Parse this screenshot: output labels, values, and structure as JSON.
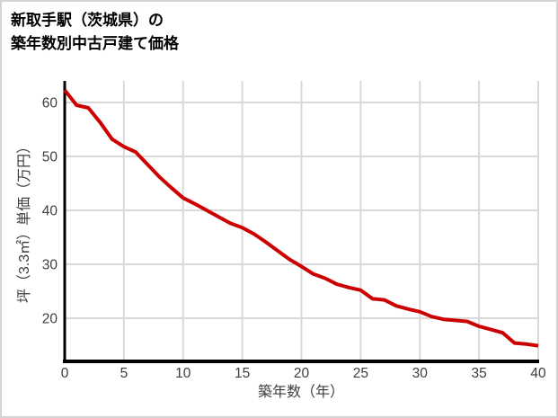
{
  "title": {
    "line1": "新取手駅（茨城県）の",
    "line2": "築年数別中古戸建て価格"
  },
  "chart_data": {
    "type": "line",
    "title": "新取手駅（茨城県）の築年数別中古戸建て価格",
    "xlabel": "築年数（年）",
    "ylabel": "坪（3.3㎡）単価（万円）",
    "x": [
      0,
      1,
      2,
      3,
      4,
      5,
      6,
      7,
      8,
      9,
      10,
      11,
      12,
      13,
      14,
      15,
      16,
      17,
      18,
      19,
      20,
      21,
      22,
      23,
      24,
      25,
      26,
      27,
      28,
      29,
      30,
      31,
      32,
      33,
      34,
      35,
      36,
      37,
      38,
      39,
      40
    ],
    "values": [
      62.3,
      59.5,
      59.0,
      56.3,
      53.2,
      51.8,
      50.8,
      48.5,
      46.2,
      44.2,
      42.3,
      41.2,
      40.0,
      38.8,
      37.6,
      36.8,
      35.6,
      34.1,
      32.5,
      30.9,
      29.6,
      28.2,
      27.4,
      26.3,
      25.7,
      25.2,
      23.6,
      23.4,
      22.3,
      21.7,
      21.2,
      20.3,
      19.8,
      19.6,
      19.4,
      18.5,
      17.9,
      17.3,
      15.4,
      15.2,
      14.9
    ],
    "xlim": [
      0,
      40
    ],
    "ylim": [
      12,
      64
    ],
    "xticks": [
      0,
      5,
      10,
      15,
      20,
      25,
      30,
      35,
      40
    ],
    "yticks": [
      20,
      30,
      40,
      50,
      60
    ],
    "grid": true,
    "legend": "none",
    "colors": {
      "line": "#cc0000",
      "grid": "#d9d9d9",
      "axis": "#000000",
      "tick_label": "#3d3d3d",
      "frame_border": "#d4d4d4",
      "background": "#ffffff"
    }
  }
}
